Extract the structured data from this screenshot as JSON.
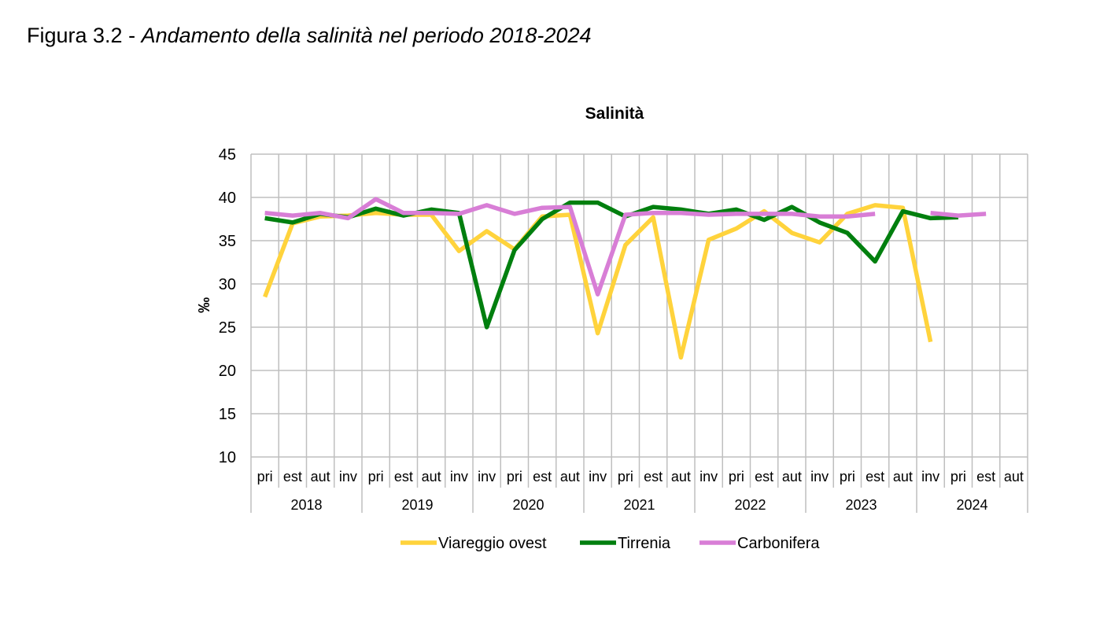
{
  "figure": {
    "label": "Figura 3.2 - ",
    "caption": "Andamento della salinità nel periodo 2018-2024"
  },
  "chart_data": {
    "type": "line",
    "title": "Salinità",
    "xlabel": "",
    "ylabel": "‰",
    "ylim": [
      10,
      45
    ],
    "yticks": [
      10,
      15,
      20,
      25,
      30,
      35,
      40,
      45
    ],
    "grid": true,
    "legend_position": "bottom",
    "categories": [
      "pri",
      "est",
      "aut",
      "inv",
      "pri",
      "est",
      "aut",
      "inv",
      "inv",
      "pri",
      "est",
      "aut",
      "inv",
      "pri",
      "est",
      "aut",
      "inv",
      "pri",
      "est",
      "aut",
      "inv",
      "pri",
      "est",
      "aut",
      "inv",
      "pri",
      "est",
      "aut"
    ],
    "years": [
      {
        "label": "2018",
        "start": 0,
        "count": 4
      },
      {
        "label": "2019",
        "start": 4,
        "count": 4
      },
      {
        "label": "2020",
        "start": 8,
        "count": 4
      },
      {
        "label": "2021",
        "start": 12,
        "count": 4
      },
      {
        "label": "2022",
        "start": 16,
        "count": 4
      },
      {
        "label": "2023",
        "start": 20,
        "count": 4
      },
      {
        "label": "2024",
        "start": 24,
        "count": 4
      }
    ],
    "series": [
      {
        "name": "Viareggio ovest",
        "color": "#FFD33C",
        "values": [
          28.5,
          37.0,
          37.8,
          37.9,
          38.2,
          38.0,
          38.0,
          33.8,
          36.1,
          34.0,
          37.8,
          38.0,
          24.3,
          34.5,
          37.7,
          21.5,
          35.1,
          36.4,
          38.4,
          35.9,
          34.8,
          38.1,
          39.1,
          38.8,
          23.3,
          null,
          null,
          null
        ]
      },
      {
        "name": "Tirrenia",
        "color": "#007F0E",
        "values": [
          37.6,
          37.1,
          38.1,
          37.7,
          38.7,
          37.9,
          38.6,
          38.2,
          25.0,
          33.9,
          37.5,
          39.4,
          39.4,
          37.8,
          38.9,
          38.6,
          38.1,
          38.6,
          37.4,
          38.9,
          37.1,
          35.9,
          32.6,
          38.4,
          37.6,
          37.7,
          null,
          null
        ]
      },
      {
        "name": "Carbonifera",
        "color": "#D87ED6",
        "values": [
          38.2,
          37.9,
          38.2,
          37.6,
          39.8,
          38.2,
          38.2,
          38.1,
          39.1,
          38.1,
          38.8,
          38.9,
          28.8,
          38.0,
          38.2,
          38.2,
          38.0,
          38.1,
          38.1,
          38.1,
          37.8,
          37.8,
          38.1,
          null,
          38.2,
          37.9,
          38.1,
          null
        ]
      }
    ]
  }
}
